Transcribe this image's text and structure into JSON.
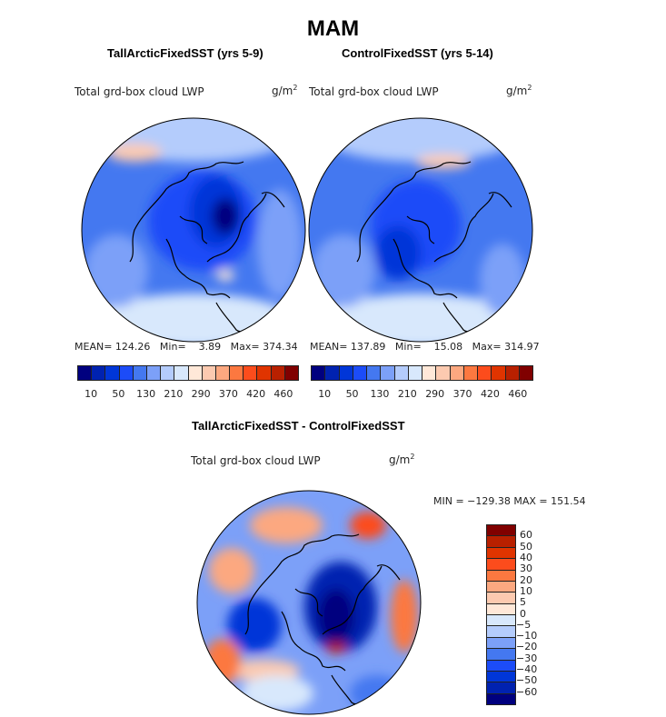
{
  "title": "MAM",
  "panels": [
    {
      "title": "TallArcticFixedSST (yrs 5-9)",
      "variable": "Total grd-box cloud LWP",
      "units": "g/m",
      "units_sup": "2",
      "stats": {
        "mean_label": "MEAN=",
        "mean": "124.26",
        "min_label": "Min=",
        "min": "3.89",
        "max_label": "Max=",
        "max": "374.34"
      }
    },
    {
      "title": "ControlFixedSST (yrs 5-14)",
      "variable": "Total grd-box cloud LWP",
      "units": "g/m",
      "units_sup": "2",
      "stats": {
        "mean_label": "MEAN=",
        "mean": "137.89",
        "min_label": "Min=",
        "min": "15.08",
        "max_label": "Max=",
        "max": "314.97"
      }
    },
    {
      "title": "TallArcticFixedSST - ControlFixedSST",
      "variable": "Total grd-box cloud LWP",
      "units": "g/m",
      "units_sup": "2",
      "minmax": "MIN = −129.38  MAX = 151.54"
    }
  ],
  "colorbar_abs": {
    "labels": [
      "10",
      "50",
      "130",
      "210",
      "290",
      "370",
      "420",
      "460"
    ],
    "colors": [
      "#00007f",
      "#0022b0",
      "#0036d8",
      "#1c4cf8",
      "#4478f0",
      "#7ca0f8",
      "#b4ccfc",
      "#d8e8fc",
      "#ffe8d8",
      "#fccab0",
      "#fca880",
      "#fc7840",
      "#fc4c1c",
      "#e03400",
      "#b82000",
      "#800000"
    ]
  },
  "colorbar_diff": {
    "labels": [
      "60",
      "50",
      "40",
      "30",
      "20",
      "10",
      "5",
      "0",
      "−5",
      "−10",
      "−20",
      "−30",
      "−40",
      "−50",
      "−60"
    ],
    "colors": [
      "#800000",
      "#b82000",
      "#e03400",
      "#fc4c1c",
      "#fc7840",
      "#fca880",
      "#fccab0",
      "#ffe8d8",
      "#d8e8fc",
      "#b4ccfc",
      "#7ca0f8",
      "#4478f0",
      "#1c4cf8",
      "#0036d8",
      "#0022b0",
      "#00007f"
    ]
  }
}
